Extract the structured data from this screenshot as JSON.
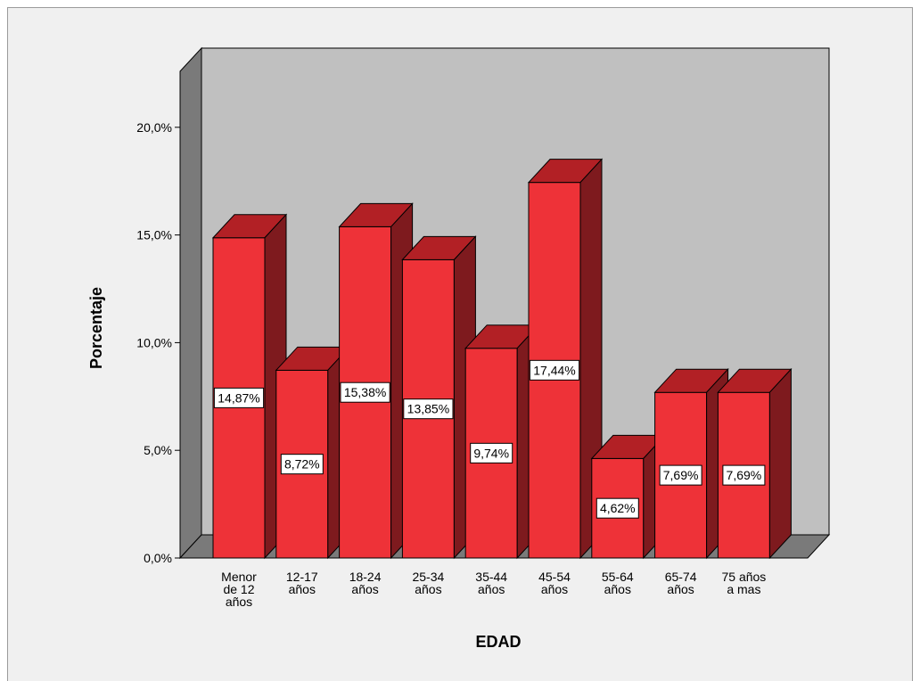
{
  "chart_data": {
    "type": "bar",
    "xlabel": "EDAD",
    "ylabel": "Porcentaje",
    "ylim": [
      0,
      22.6
    ],
    "grid": false,
    "style": "3d",
    "yticks": [
      {
        "value": 0,
        "label": "0,0%"
      },
      {
        "value": 5,
        "label": "5,0%"
      },
      {
        "value": 10,
        "label": "10,0%"
      },
      {
        "value": 15,
        "label": "15,0%"
      },
      {
        "value": 20,
        "label": "20,0%"
      }
    ],
    "categories": [
      [
        "Menor",
        "de 12",
        "años"
      ],
      [
        "12-17",
        "años"
      ],
      [
        "18-24",
        "años"
      ],
      [
        "25-34",
        "años"
      ],
      [
        "35-44",
        "años"
      ],
      [
        "45-54",
        "años"
      ],
      [
        "55-64",
        "años"
      ],
      [
        "65-74",
        "años"
      ],
      [
        "75 años",
        "a mas"
      ]
    ],
    "values": [
      14.87,
      8.72,
      15.38,
      13.85,
      9.74,
      17.44,
      4.62,
      7.69,
      7.69
    ],
    "data_labels": [
      "14,87%",
      "8,72%",
      "15,38%",
      "13,85%",
      "9,74%",
      "17,44%",
      "4,62%",
      "7,69%",
      "7,69%"
    ],
    "colors": {
      "bar_front": "#ee3238",
      "bar_top": "#b22025",
      "bar_side": "#7e1a1e",
      "wall": "#c0c0c0",
      "wall_side": "#7a7a7a",
      "floor": "#7a7a7a"
    }
  }
}
